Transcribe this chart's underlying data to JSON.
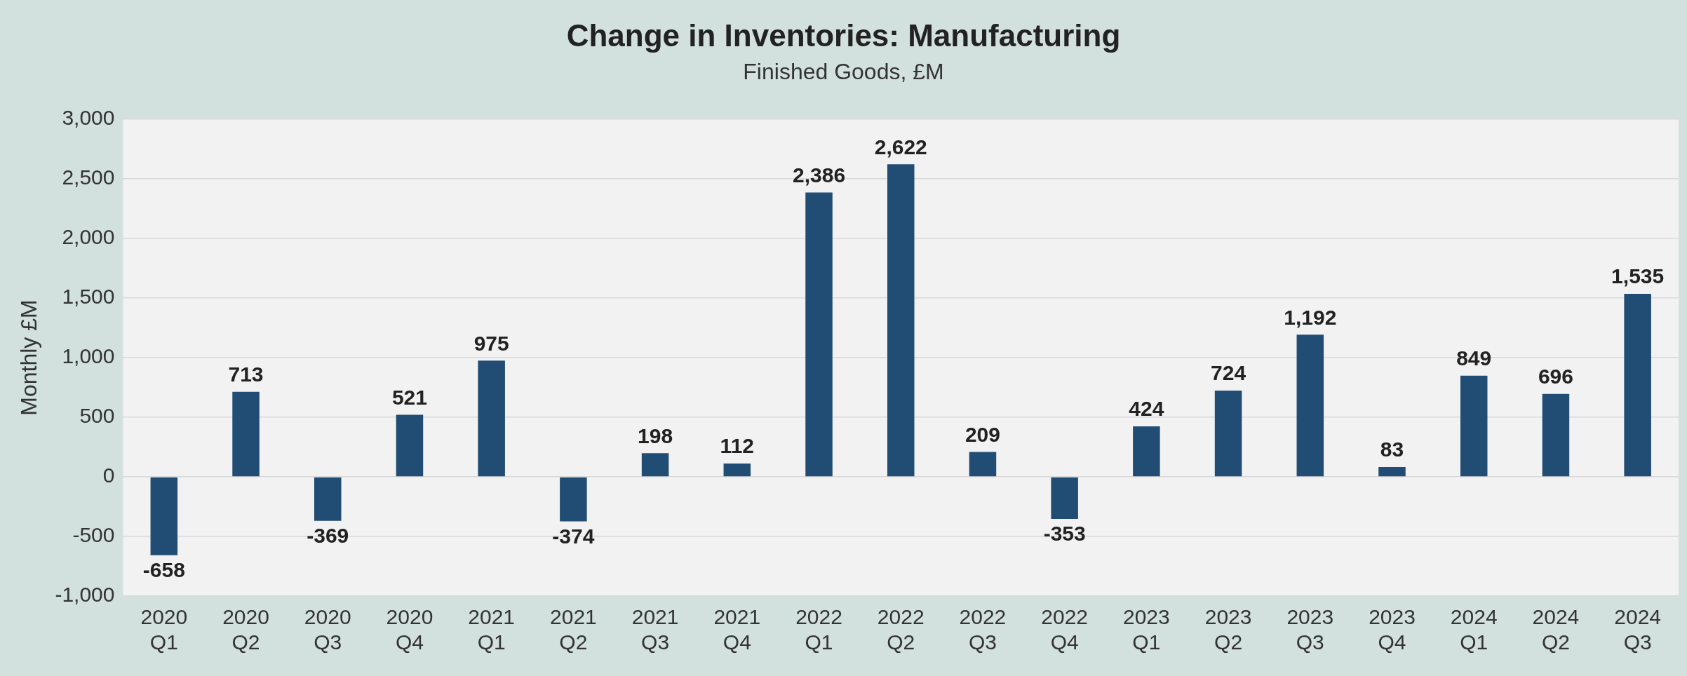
{
  "chart_data": {
    "type": "bar",
    "title": "Change in Inventories: Manufacturing",
    "subtitle": "Finished Goods, £M",
    "ylabel": "Monthly £M",
    "categories": [
      "2020 Q1",
      "2020 Q2",
      "2020 Q3",
      "2020 Q4",
      "2021 Q1",
      "2021 Q2",
      "2021 Q3",
      "2021 Q4",
      "2022 Q1",
      "2022 Q2",
      "2022 Q3",
      "2022 Q4",
      "2023 Q1",
      "2023 Q2",
      "2023 Q3",
      "2023 Q4",
      "2024 Q1",
      "2024 Q2",
      "2024 Q3"
    ],
    "values": [
      -658,
      713,
      -369,
      521,
      975,
      -374,
      198,
      112,
      2386,
      2622,
      209,
      -353,
      424,
      724,
      1192,
      83,
      849,
      696,
      1535
    ],
    "color": "#214d74",
    "value_labels": [
      "-658",
      "713",
      "-369",
      "521",
      "975",
      "-374",
      "198",
      "112",
      "2,386",
      "2,622",
      "209",
      "-353",
      "424",
      "724",
      "1,192",
      "83",
      "849",
      "696",
      "1,535"
    ],
    "ylim": [
      -1000,
      3000
    ],
    "yticks": [
      {
        "value": -1000,
        "label": "-1,000"
      },
      -500,
      0,
      500,
      {
        "value": 1000,
        "label": "1,000"
      },
      {
        "value": 1500,
        "label": "1,500"
      },
      {
        "value": 2000,
        "label": "2,000"
      },
      {
        "value": 2500,
        "label": "2,500"
      },
      {
        "value": 3000,
        "label": "3,000"
      }
    ],
    "grid": "y",
    "legend": false
  }
}
